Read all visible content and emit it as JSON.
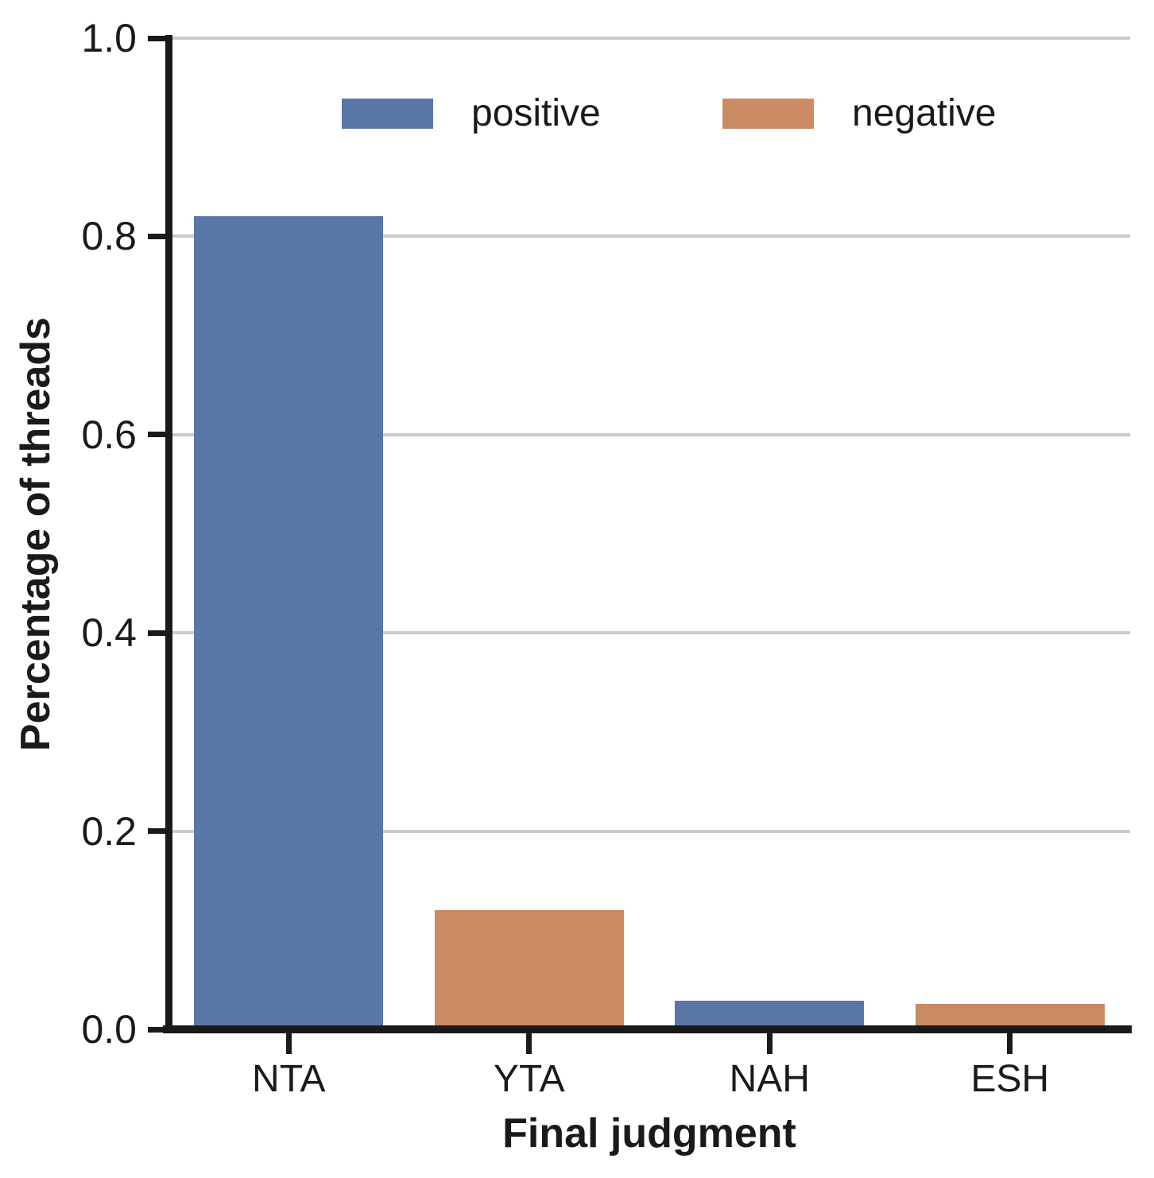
{
  "figure": {
    "background": "#ffffff",
    "text_color": "#1a1a1a",
    "grid_color": "#cbcbcb",
    "spine_color": "#1a1a1a"
  },
  "chart_data": {
    "type": "bar",
    "title": "",
    "xlabel": "Final judgment",
    "ylabel": "Percentage of threads",
    "ylim": [
      0.0,
      1.0
    ],
    "yticks": [
      "0.0",
      "0.2",
      "0.4",
      "0.6",
      "0.8",
      "1.0"
    ],
    "grid": "horizontal gridlines on",
    "categories": [
      "NTA",
      "YTA",
      "NAH",
      "ESH"
    ],
    "series": [
      {
        "name": "positive",
        "color": "#5877a7",
        "values": [
          0.82,
          null,
          0.029,
          null
        ]
      },
      {
        "name": "negative",
        "color": "#cc8a63",
        "values": [
          null,
          0.12,
          null,
          0.026
        ]
      }
    ],
    "legend": {
      "position": "upper center, inside plot, no frame",
      "entries": [
        "positive",
        "negative"
      ]
    }
  }
}
